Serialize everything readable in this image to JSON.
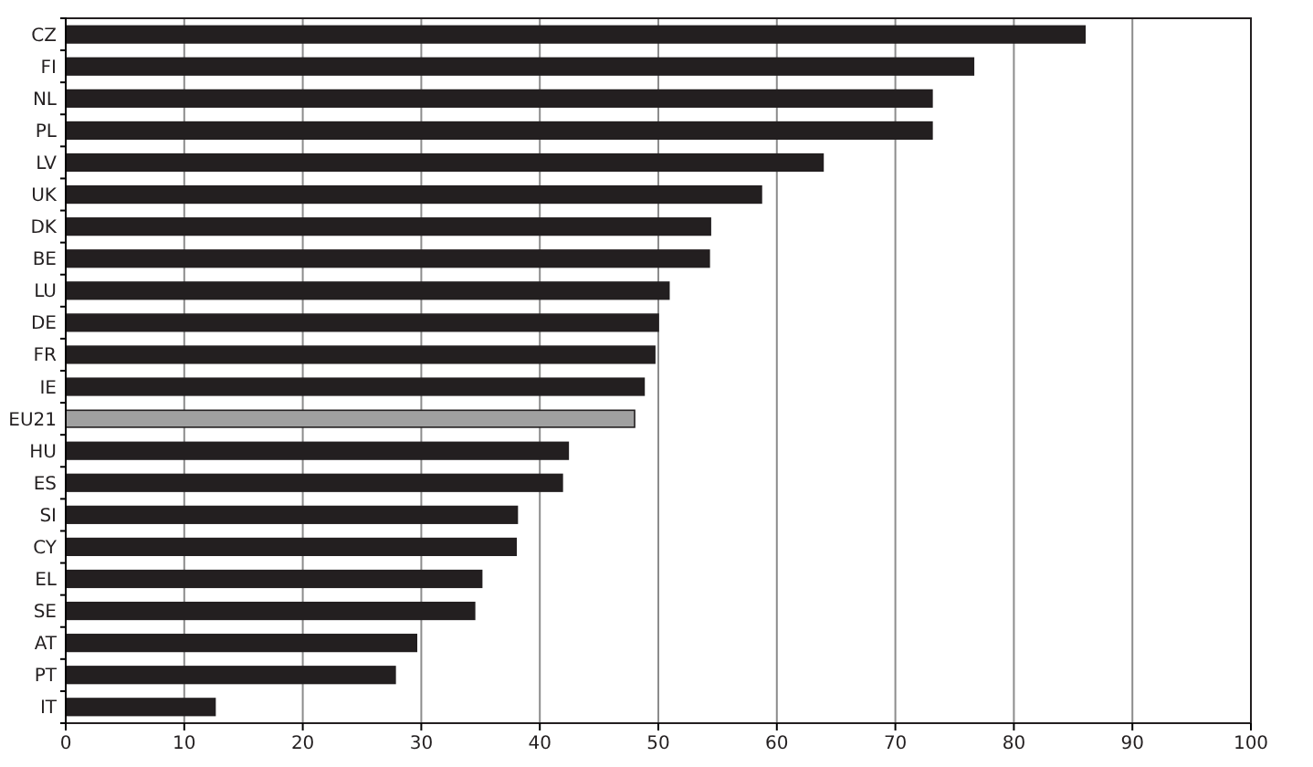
{
  "chart_data": {
    "type": "bar",
    "orientation": "horizontal",
    "categories": [
      "CZ",
      "FI",
      "NL",
      "PL",
      "LV",
      "UK",
      "DK",
      "BE",
      "LU",
      "DE",
      "FR",
      "IE",
      "EU21",
      "HU",
      "ES",
      "SI",
      "CY",
      "EL",
      "SE",
      "AT",
      "PT",
      "IT"
    ],
    "values": [
      86.0,
      76.6,
      73.1,
      73.1,
      63.9,
      58.7,
      54.4,
      54.3,
      50.9,
      50.0,
      49.7,
      48.8,
      48.0,
      42.4,
      41.9,
      38.1,
      38.0,
      35.1,
      34.5,
      29.6,
      27.8,
      12.6
    ],
    "colors": [
      "#231f20",
      "#231f20",
      "#231f20",
      "#231f20",
      "#231f20",
      "#231f20",
      "#231f20",
      "#231f20",
      "#231f20",
      "#231f20",
      "#231f20",
      "#231f20",
      "#a0a0a0",
      "#231f20",
      "#231f20",
      "#231f20",
      "#231f20",
      "#231f20",
      "#231f20",
      "#231f20",
      "#231f20",
      "#231f20"
    ],
    "xlim": [
      0,
      100
    ],
    "xticks": [
      0,
      10,
      20,
      30,
      40,
      50,
      60,
      70,
      80,
      90,
      100
    ],
    "grid": "x"
  }
}
